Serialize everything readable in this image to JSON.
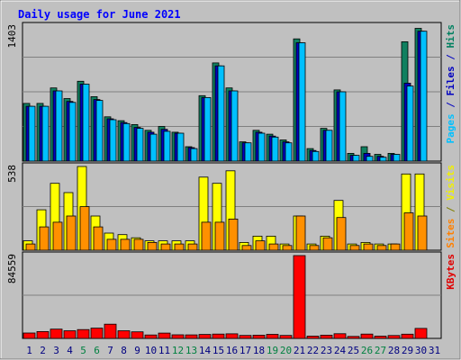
{
  "chart_data": {
    "type": "bar",
    "title": "Daily usage for June 2021",
    "x": [
      "1",
      "2",
      "3",
      "4",
      "5",
      "6",
      "7",
      "8",
      "9",
      "10",
      "11",
      "12",
      "13",
      "14",
      "15",
      "16",
      "17",
      "18",
      "19",
      "20",
      "21",
      "22",
      "23",
      "24",
      "25",
      "26",
      "27",
      "28",
      "29",
      "30",
      "31"
    ],
    "weekend_days": [
      "5",
      "6",
      "12",
      "13",
      "19",
      "20",
      "26",
      "27"
    ],
    "panels": [
      {
        "id": "pages-files-hits",
        "ymax_label": "1403",
        "ylim": [
          0,
          1403
        ],
        "side_label": [
          {
            "text": "Pages",
            "color": "#00c0ff"
          },
          {
            "text": " / ",
            "color": "#0000c0"
          },
          {
            "text": "Files",
            "color": "#0000c0"
          },
          {
            "text": " / ",
            "color": "#0000c0"
          },
          {
            "text": "Hits",
            "color": "#008060"
          }
        ],
        "series": [
          {
            "name": "Hits",
            "color": "#108060",
            "values": [
              600,
              600,
              760,
              650,
              830,
              670,
              460,
              420,
              380,
              320,
              360,
              300,
              150,
              680,
              1020,
              760,
              200,
              320,
              280,
              220,
              1270,
              130,
              340,
              740,
              80,
              150,
              70,
              80,
              1240,
              1380,
              0
            ]
          },
          {
            "name": "Files",
            "color": "#0000c0",
            "values": [
              570,
              570,
              730,
              620,
              800,
              640,
              440,
              400,
              350,
              300,
              330,
              290,
              140,
              660,
              990,
              730,
              190,
              300,
              260,
              200,
              1230,
              110,
              320,
              720,
              60,
              80,
              50,
              70,
              810,
              1350,
              0
            ]
          },
          {
            "name": "Pages",
            "color": "#00c0ff",
            "values": [
              570,
              570,
              730,
              610,
              800,
              630,
              430,
              390,
              340,
              280,
              310,
              290,
              130,
              660,
              990,
              730,
              190,
              290,
              250,
              190,
              1230,
              100,
              320,
              720,
              60,
              50,
              40,
              70,
              780,
              1350,
              0
            ]
          }
        ]
      },
      {
        "id": "visits-sites",
        "ymax_label": "538",
        "ylim": [
          0,
          538
        ],
        "side_label": [
          {
            "text": "Sites",
            "color": "#ff8000"
          },
          {
            "text": " / ",
            "color": "#808000"
          },
          {
            "text": "Visits",
            "color": "#f0f000"
          }
        ],
        "series": [
          {
            "name": "Visits",
            "color": "#ffff00",
            "values": [
              60,
              260,
              430,
              370,
              538,
              220,
              110,
              100,
              80,
              60,
              60,
              60,
              60,
              470,
              430,
              510,
              50,
              90,
              90,
              40,
              220,
              40,
              90,
              320,
              40,
              50,
              40,
              40,
              490,
              490,
              0
            ]
          },
          {
            "name": "Sites",
            "color": "#ff9000",
            "values": [
              40,
              150,
              180,
              220,
              280,
              150,
              70,
              70,
              70,
              50,
              40,
              40,
              40,
              180,
              180,
              200,
              30,
              60,
              40,
              30,
              220,
              30,
              80,
              210,
              30,
              40,
              30,
              40,
              240,
              220,
              0
            ]
          }
        ]
      },
      {
        "id": "kbytes",
        "ymax_label": "84559",
        "ylim": [
          0,
          84559
        ],
        "side_label": [
          {
            "text": "KBytes",
            "color": "#e00000"
          }
        ],
        "series": [
          {
            "name": "KBytes",
            "color": "#ff0000",
            "values": [
              5500,
              7000,
              9500,
              7800,
              9000,
              10500,
              14500,
              7800,
              6700,
              3500,
              5400,
              3700,
              3600,
              4000,
              4400,
              4700,
              3000,
              3300,
              4100,
              3000,
              84559,
              2300,
              3300,
              4800,
              2000,
              4400,
              2300,
              2900,
              4300,
              10200,
              0
            ]
          }
        ]
      }
    ],
    "grid": true,
    "colors": {
      "background": "#c0c0c0",
      "grid": "#808080",
      "title": "#0000ff",
      "weekday_label": "#000080",
      "weekend_label": "#008040"
    }
  }
}
